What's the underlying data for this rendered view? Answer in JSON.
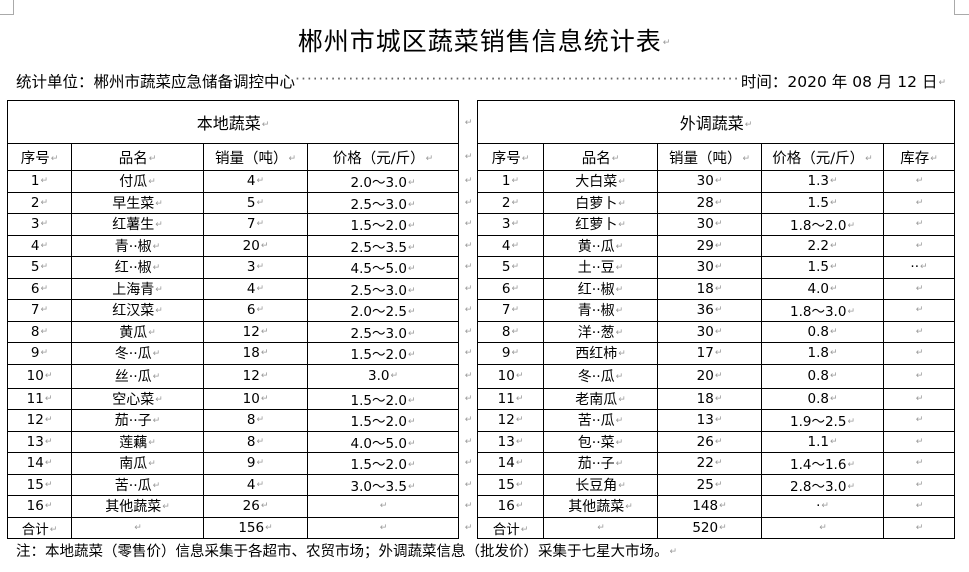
{
  "title": "郴州市城区蔬菜销售信息统计表",
  "unit_label": "统计单位：郴州市蔬菜应急储备调控中心",
  "date_label": "时间：2020 年 08 月 12 日",
  "local": {
    "heading": "本地蔬菜",
    "columns": [
      "序号",
      "品名",
      "销量（吨）",
      "价格（元/斤）"
    ],
    "rows": [
      [
        "1",
        "付瓜",
        "4",
        "2.0～3.0"
      ],
      [
        "2",
        "早生菜",
        "5",
        "2.5～3.0"
      ],
      [
        "3",
        "红薯生",
        "7",
        "1.5～2.0"
      ],
      [
        "4",
        "青··椒",
        "20",
        "2.5～3.5"
      ],
      [
        "5",
        "红··椒",
        "3",
        "4.5～5.0"
      ],
      [
        "6",
        "上海青",
        "4",
        "2.5～3.0"
      ],
      [
        "7",
        "红汉菜",
        "6",
        "2.0～2.5"
      ],
      [
        "8",
        "黄瓜",
        "12",
        "2.5～3.0"
      ],
      [
        "9",
        "冬··瓜",
        "18",
        "1.5～2.0"
      ],
      [
        "10",
        "丝··瓜",
        "12",
        "3.0"
      ],
      [
        "11",
        "空心菜",
        "10",
        "1.5～2.0"
      ],
      [
        "12",
        "茄··子",
        "8",
        "1.5～2.0"
      ],
      [
        "13",
        "莲藕",
        "8",
        "4.0～5.0"
      ],
      [
        "14",
        "南瓜",
        "9",
        "1.5～2.0"
      ],
      [
        "15",
        "苦··瓜",
        "4",
        "3.0～3.5"
      ],
      [
        "16",
        "其他蔬菜",
        "26",
        ""
      ]
    ],
    "total": [
      "合计",
      "",
      "156",
      ""
    ]
  },
  "imported": {
    "heading": "外调蔬菜",
    "columns": [
      "序号",
      "品名",
      "销量（吨）",
      "价格（元/斤）",
      "库存"
    ],
    "rows": [
      [
        "1",
        "大白菜",
        "30",
        "1.3",
        ""
      ],
      [
        "2",
        "白萝卜",
        "28",
        "1.5",
        ""
      ],
      [
        "3",
        "红萝卜",
        "30",
        "1.8～2.0",
        ""
      ],
      [
        "4",
        "黄··瓜",
        "29",
        "2.2",
        ""
      ],
      [
        "5",
        "土··豆",
        "30",
        "1.5",
        "··"
      ],
      [
        "6",
        "红··椒",
        "18",
        "4.0",
        ""
      ],
      [
        "7",
        "青··椒",
        "36",
        "1.8～3.0",
        ""
      ],
      [
        "8",
        "洋··葱",
        "30",
        "0.8",
        ""
      ],
      [
        "9",
        "西红柿",
        "17",
        "1.8",
        ""
      ],
      [
        "10",
        "冬··瓜",
        "20",
        "0.8",
        ""
      ],
      [
        "11",
        "老南瓜",
        "18",
        "0.8",
        ""
      ],
      [
        "12",
        "苦··瓜",
        "13",
        "1.9～2.5",
        ""
      ],
      [
        "13",
        "包··菜",
        "26",
        "1.1",
        ""
      ],
      [
        "14",
        "茄··子",
        "22",
        "1.4～1.6",
        ""
      ],
      [
        "15",
        "长豆角",
        "25",
        "2.8～3.0",
        ""
      ],
      [
        "16",
        "其他蔬菜",
        "148",
        "·",
        ""
      ]
    ],
    "total": [
      "合计",
      "",
      "520",
      "",
      ""
    ]
  },
  "note": "注：本地蔬菜（零售价）信息采集于各超市、农贸市场；外调蔬菜信息（批发价）采集于七星大市场。"
}
